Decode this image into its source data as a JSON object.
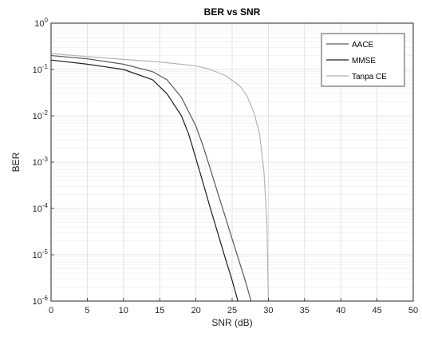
{
  "chart_data": {
    "type": "line",
    "title": "BER vs SNR",
    "xlabel": "SNR (dB)",
    "ylabel": "BER",
    "xlim": [
      0,
      50
    ],
    "ylim": [
      1e-06,
      1
    ],
    "yscale": "log",
    "xticks": [
      0,
      5,
      10,
      15,
      20,
      25,
      30,
      35,
      40,
      45,
      50
    ],
    "yticks": [
      {
        "value": 1,
        "base": "10",
        "exp": "0"
      },
      {
        "value": 0.1,
        "base": "10",
        "exp": "-1"
      },
      {
        "value": 0.01,
        "base": "10",
        "exp": "-2"
      },
      {
        "value": 0.001,
        "base": "10",
        "exp": "-3"
      },
      {
        "value": 0.0001,
        "base": "10",
        "exp": "-4"
      },
      {
        "value": 1e-05,
        "base": "10",
        "exp": "-5"
      },
      {
        "value": 1e-06,
        "base": "10",
        "exp": "-6"
      }
    ],
    "grid": true,
    "minor_grid": true,
    "legend_position": "top-right",
    "series": [
      {
        "name": "AACE",
        "color": "#5a5a5a",
        "x": [
          0,
          5,
          10,
          14,
          16,
          18,
          20,
          21,
          22,
          23,
          24,
          25,
          26,
          27,
          27.6
        ],
        "y": [
          0.2,
          0.17,
          0.13,
          0.09,
          0.06,
          0.025,
          0.006,
          0.0022,
          0.0007,
          0.00022,
          7e-05,
          2.2e-05,
          7e-06,
          2.2e-06,
          1e-06
        ]
      },
      {
        "name": "MMSE",
        "color": "#1f1f1f",
        "x": [
          0,
          5,
          10,
          14,
          16,
          18,
          19,
          20,
          21,
          22,
          23,
          24,
          25,
          25.8
        ],
        "y": [
          0.16,
          0.13,
          0.1,
          0.06,
          0.03,
          0.01,
          0.004,
          0.0012,
          0.00035,
          0.0001,
          3e-05,
          9e-06,
          2.8e-06,
          1e-06
        ]
      },
      {
        "name": "Tanpa CE",
        "color": "#b4b4b4",
        "x": [
          0,
          5,
          10,
          15,
          20,
          22,
          24,
          26,
          27,
          28,
          28.8,
          29.4,
          29.8,
          30
        ],
        "y": [
          0.22,
          0.19,
          0.165,
          0.145,
          0.12,
          0.1,
          0.075,
          0.045,
          0.028,
          0.012,
          0.004,
          0.0006,
          5e-05,
          1e-06
        ]
      }
    ]
  }
}
